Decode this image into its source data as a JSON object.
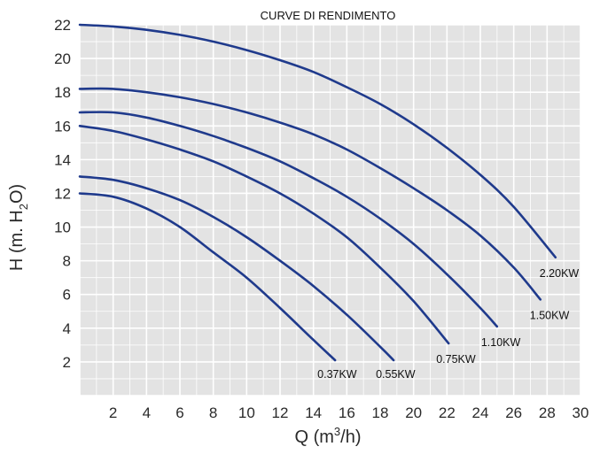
{
  "chart_data": {
    "type": "line",
    "title": "CURVE DI RENDIMENTO",
    "xlabel": {
      "main": "Q (m",
      "sup": "3",
      "tail": "/h)"
    },
    "ylabel": {
      "main": "H (m. H",
      "sub": "2",
      "tail": "O)"
    },
    "xlim": [
      0,
      30
    ],
    "ylim": [
      0,
      22
    ],
    "xticks": [
      "2",
      "4",
      "6",
      "8",
      "10",
      "12",
      "14",
      "16",
      "18",
      "20",
      "22",
      "24",
      "26",
      "28",
      "30"
    ],
    "yticks": [
      "2",
      "4",
      "6",
      "8",
      "10",
      "12",
      "14",
      "16",
      "18",
      "20",
      "22"
    ],
    "grid": true,
    "series": [
      {
        "name": "0.37KW",
        "x": [
          0,
          2,
          4,
          6,
          8,
          10,
          12,
          14,
          15.3
        ],
        "y": [
          12,
          11.8,
          11.1,
          10,
          8.5,
          7,
          5.2,
          3.3,
          2.1
        ]
      },
      {
        "name": "0.55KW",
        "x": [
          0,
          2,
          4,
          6,
          8,
          10,
          12,
          14,
          16,
          18,
          18.8
        ],
        "y": [
          13,
          12.8,
          12.3,
          11.6,
          10.6,
          9.4,
          8,
          6.5,
          4.8,
          2.9,
          2.1
        ]
      },
      {
        "name": "0.75KW",
        "x": [
          0,
          2,
          4,
          6,
          8,
          10,
          12,
          14,
          16,
          18,
          20,
          22.1
        ],
        "y": [
          16,
          15.7,
          15.2,
          14.6,
          13.9,
          13,
          12,
          10.8,
          9.4,
          7.6,
          5.6,
          3.1
        ]
      },
      {
        "name": "1.10KW",
        "x": [
          0,
          2,
          4,
          6,
          8,
          10,
          12,
          14,
          16,
          18,
          20,
          22,
          24,
          25
        ],
        "y": [
          16.8,
          16.8,
          16.5,
          16,
          15.4,
          14.7,
          13.9,
          12.9,
          11.8,
          10.5,
          9,
          7.2,
          5.2,
          4.1
        ]
      },
      {
        "name": "1.50KW",
        "x": [
          0,
          2,
          4,
          6,
          8,
          10,
          12,
          14,
          16,
          18,
          20,
          22,
          24,
          26,
          27.6
        ],
        "y": [
          18.2,
          18.2,
          18,
          17.7,
          17.3,
          16.8,
          16.2,
          15.5,
          14.6,
          13.5,
          12.3,
          11,
          9.5,
          7.6,
          5.7
        ]
      },
      {
        "name": "2.20KW",
        "x": [
          0,
          2,
          4,
          6,
          8,
          10,
          12,
          14,
          16,
          18,
          20,
          22,
          24,
          26,
          28.5
        ],
        "y": [
          22,
          21.9,
          21.7,
          21.4,
          21,
          20.5,
          19.9,
          19.2,
          18.3,
          17.3,
          16.1,
          14.7,
          13.1,
          11.2,
          8.2
        ]
      }
    ]
  },
  "colors": {
    "curve": "#1f3a8c",
    "plot_bg": "#e3e3e3",
    "grid": "#ffffff"
  }
}
